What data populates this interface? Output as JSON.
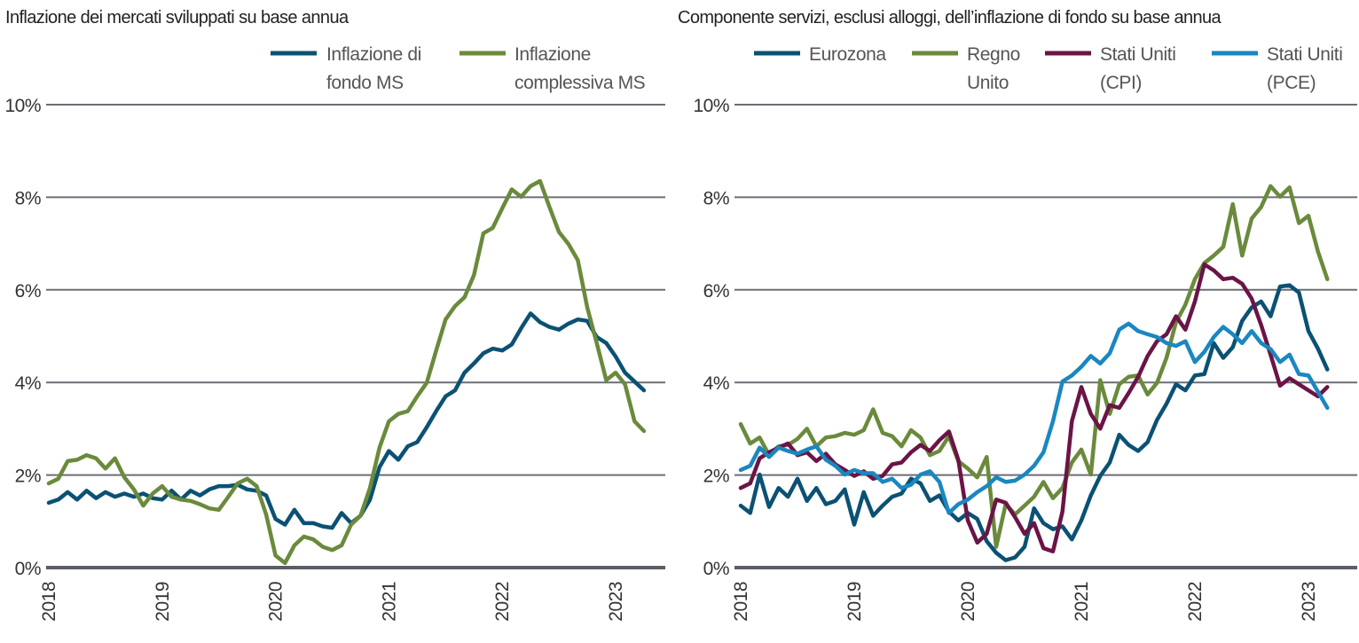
{
  "chart_data": [
    {
      "type": "line",
      "title": "Inflazione dei mercati sviluppati su base annua",
      "x_start": "2018-01",
      "x_frequency": "monthly",
      "x_ticks": [
        "2018",
        "2019",
        "2020",
        "2021",
        "2022",
        "2023"
      ],
      "y_ticks": [
        "0%",
        "2%",
        "4%",
        "6%",
        "8%",
        "10%"
      ],
      "ylim": [
        0,
        10
      ],
      "grid": true,
      "legend_placement": "top-right",
      "series": [
        {
          "name": "Inflazione di fondo MS",
          "label_lines": [
            "Inflazione di",
            "fondo MS"
          ],
          "color": "#0b5174",
          "values": [
            1.4,
            1.47,
            1.63,
            1.47,
            1.66,
            1.5,
            1.63,
            1.53,
            1.6,
            1.53,
            1.6,
            1.5,
            1.47,
            1.66,
            1.47,
            1.66,
            1.56,
            1.69,
            1.76,
            1.76,
            1.79,
            1.69,
            1.66,
            1.56,
            1.05,
            0.93,
            1.25,
            0.96,
            0.96,
            0.89,
            0.86,
            1.18,
            0.96,
            1.12,
            1.47,
            2.17,
            2.52,
            2.33,
            2.62,
            2.71,
            3.03,
            3.38,
            3.7,
            3.83,
            4.21,
            4.41,
            4.63,
            4.73,
            4.69,
            4.82,
            5.17,
            5.49,
            5.3,
            5.2,
            5.14,
            5.27,
            5.36,
            5.33,
            4.98,
            4.85,
            4.56,
            4.21,
            4.02,
            3.83
          ]
        },
        {
          "name": "Inflazione complessiva MS",
          "label_lines": [
            "Inflazione",
            "complessiva MS"
          ],
          "color": "#6a8a3c",
          "values": [
            1.82,
            1.92,
            2.3,
            2.33,
            2.43,
            2.36,
            2.14,
            2.36,
            1.95,
            1.69,
            1.34,
            1.6,
            1.76,
            1.53,
            1.47,
            1.44,
            1.37,
            1.28,
            1.25,
            1.53,
            1.82,
            1.92,
            1.76,
            1.15,
            0.26,
            0.1,
            0.48,
            0.67,
            0.61,
            0.45,
            0.38,
            0.48,
            0.93,
            1.12,
            1.72,
            2.59,
            3.16,
            3.32,
            3.38,
            3.7,
            3.99,
            4.69,
            5.36,
            5.65,
            5.84,
            6.32,
            7.22,
            7.34,
            7.76,
            8.17,
            8.01,
            8.24,
            8.35,
            7.79,
            7.25,
            6.99,
            6.64,
            5.62,
            4.85,
            4.05,
            4.21,
            3.96,
            3.16,
            2.95
          ]
        }
      ]
    },
    {
      "type": "line",
      "title": "Componente servizi, esclusi alloggi, dell’inflazione di fondo su base annua",
      "x_start": "2018-01",
      "x_frequency": "monthly",
      "x_ticks": [
        "2018",
        "2019",
        "2020",
        "2021",
        "2022",
        "2023"
      ],
      "y_ticks": [
        "0%",
        "2%",
        "4%",
        "6%",
        "8%",
        "10%"
      ],
      "ylim": [
        0,
        10
      ],
      "grid": true,
      "legend_placement": "top",
      "series": [
        {
          "name": "Eurozona",
          "label_lines": [
            "Eurozona"
          ],
          "color": "#0b5174",
          "values": [
            1.34,
            1.18,
            2.01,
            1.31,
            1.72,
            1.53,
            1.92,
            1.44,
            1.72,
            1.37,
            1.44,
            1.69,
            0.93,
            1.63,
            1.12,
            1.34,
            1.53,
            1.6,
            1.92,
            1.82,
            1.44,
            1.56,
            1.21,
            1.02,
            1.18,
            1.05,
            0.57,
            0.32,
            0.16,
            0.22,
            0.45,
            1.28,
            0.96,
            0.83,
            0.89,
            0.61,
            1.02,
            1.56,
            1.98,
            2.27,
            2.87,
            2.65,
            2.52,
            2.71,
            3.19,
            3.54,
            3.96,
            3.83,
            4.15,
            4.18,
            4.85,
            4.53,
            4.76,
            5.33,
            5.62,
            5.75,
            5.43,
            6.07,
            6.1,
            5.94,
            5.11,
            4.73,
            4.28
          ]
        },
        {
          "name": "Regno Unito",
          "label_lines": [
            "Regno",
            "Unito"
          ],
          "color": "#6a8a3c",
          "values": [
            3.1,
            2.68,
            2.81,
            2.43,
            2.62,
            2.65,
            2.78,
            3.0,
            2.62,
            2.81,
            2.84,
            2.91,
            2.87,
            2.97,
            3.42,
            2.91,
            2.84,
            2.62,
            2.97,
            2.81,
            2.43,
            2.52,
            2.84,
            2.3,
            2.14,
            1.95,
            2.39,
            0.45,
            1.37,
            1.15,
            1.34,
            1.53,
            1.85,
            1.5,
            1.72,
            2.27,
            2.55,
            2.01,
            4.05,
            3.32,
            3.96,
            4.12,
            4.15,
            3.74,
            3.99,
            4.53,
            5.3,
            5.68,
            6.23,
            6.58,
            6.74,
            6.93,
            7.85,
            6.74,
            7.54,
            7.79,
            8.24,
            8.01,
            8.21,
            7.44,
            7.6,
            6.83,
            6.23
          ]
        },
        {
          "name": "Stati Uniti (CPI)",
          "label_lines": [
            "Stati Uniti",
            "(CPI)"
          ],
          "color": "#6b1446",
          "values": [
            1.72,
            1.82,
            2.36,
            2.49,
            2.59,
            2.68,
            2.43,
            2.49,
            2.3,
            2.46,
            2.23,
            2.11,
            1.98,
            2.08,
            1.92,
            1.98,
            2.23,
            2.27,
            2.49,
            2.65,
            2.52,
            2.75,
            2.94,
            2.33,
            1.02,
            0.54,
            0.73,
            1.47,
            1.4,
            1.09,
            0.73,
            0.96,
            0.42,
            0.35,
            1.21,
            3.16,
            3.9,
            3.32,
            3.0,
            3.51,
            3.45,
            3.77,
            4.12,
            4.57,
            4.89,
            5.04,
            5.43,
            5.14,
            5.75,
            6.55,
            6.42,
            6.23,
            6.26,
            6.13,
            5.81,
            5.24,
            4.6,
            3.93,
            4.09,
            3.96,
            3.83,
            3.7,
            3.9
          ]
        },
        {
          "name": "Stati Uniti (PCE)",
          "label_lines": [
            "Stati Uniti",
            "(PCE)"
          ],
          "color": "#1a87c0",
          "values": [
            2.11,
            2.2,
            2.59,
            2.39,
            2.59,
            2.52,
            2.46,
            2.55,
            2.62,
            2.33,
            2.2,
            2.01,
            2.11,
            2.04,
            2.04,
            1.85,
            1.92,
            1.72,
            1.79,
            2.01,
            2.08,
            1.85,
            1.18,
            1.37,
            1.47,
            1.63,
            1.76,
            1.95,
            1.85,
            1.88,
            2.01,
            2.2,
            2.49,
            3.16,
            4.02,
            4.15,
            4.34,
            4.57,
            4.41,
            4.63,
            5.14,
            5.27,
            5.11,
            5.04,
            4.98,
            4.85,
            4.79,
            4.89,
            4.44,
            4.66,
            4.98,
            5.2,
            5.04,
            4.85,
            5.11,
            4.85,
            4.72,
            4.44,
            4.6,
            4.18,
            4.15,
            3.8,
            3.45
          ]
        }
      ]
    }
  ]
}
